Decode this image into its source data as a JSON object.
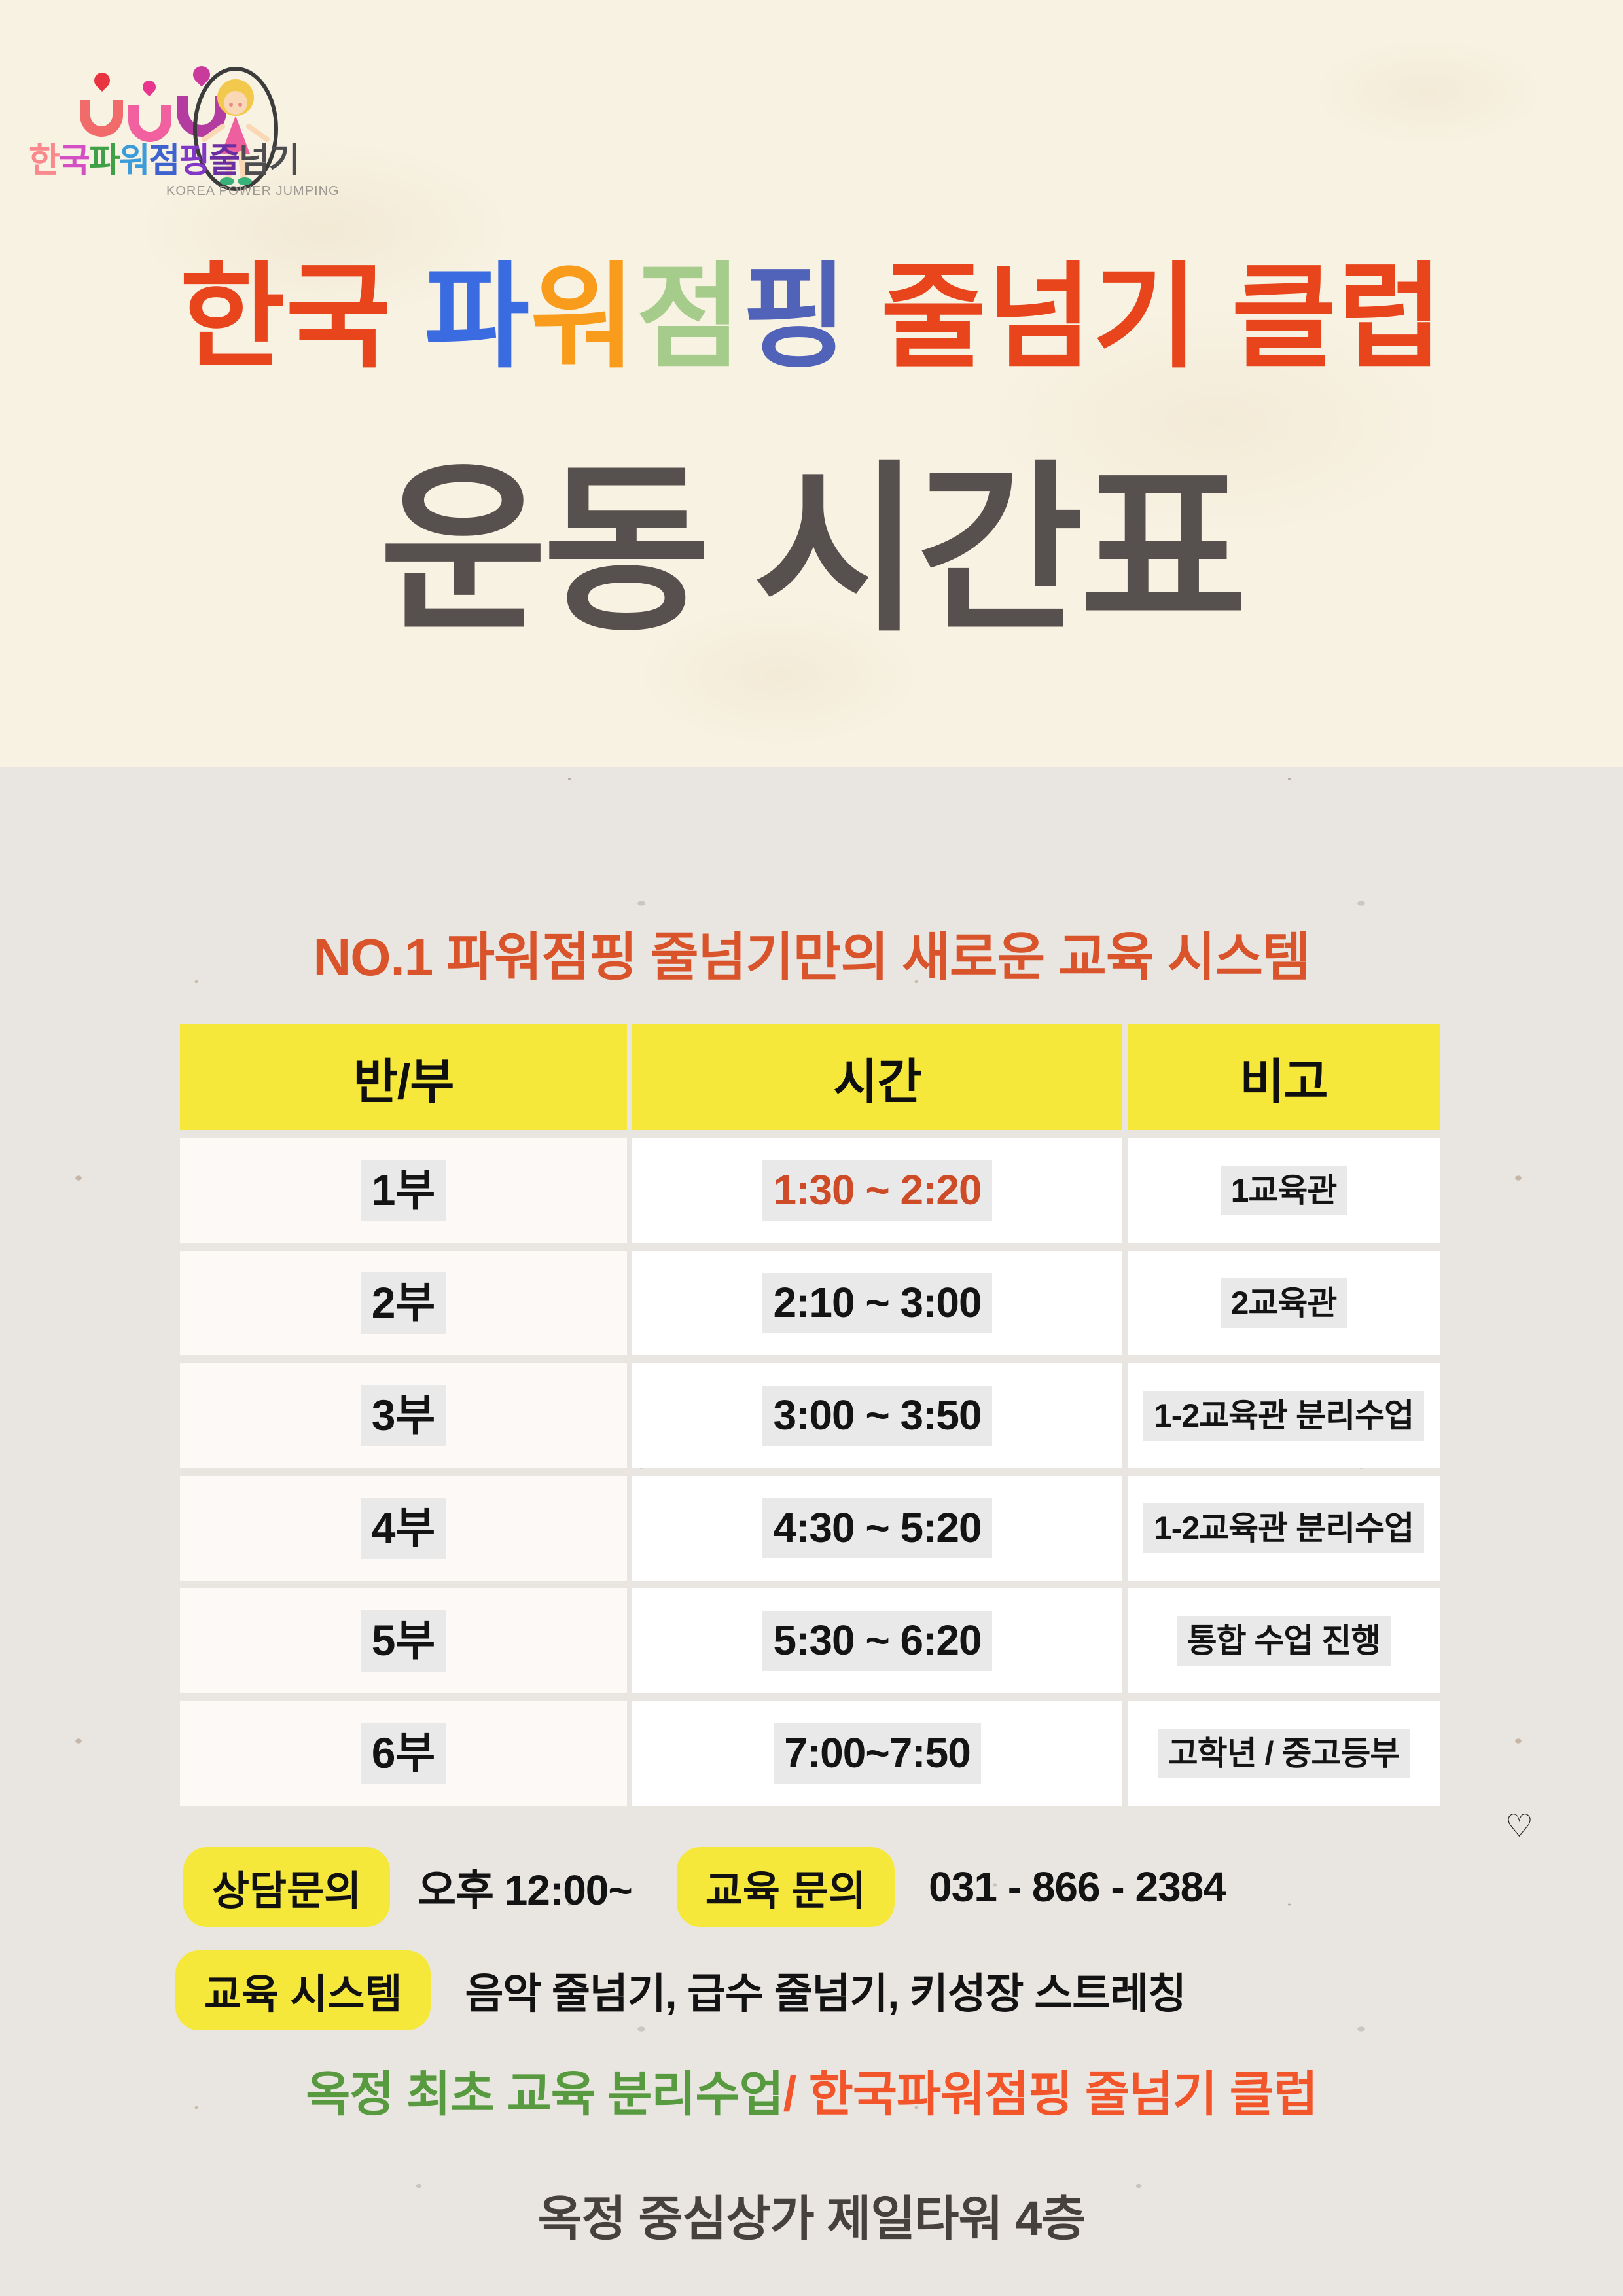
{
  "logo": {
    "chars": [
      {
        "c": "한",
        "color": "#F9898C"
      },
      {
        "c": "국",
        "color": "#D44FC4"
      },
      {
        "c": "파",
        "color": "#3FA047"
      },
      {
        "c": "워",
        "color": "#3C9BD9"
      },
      {
        "c": "점",
        "color": "#3F63CE"
      },
      {
        "c": "핑",
        "color": "#8237C6"
      },
      {
        "c": "줄",
        "color": "#6B2EA0"
      },
      {
        "c": "넘",
        "color": "#4D4C4E"
      },
      {
        "c": "기",
        "color": "#4D4C4E"
      }
    ],
    "subtitle": "KOREA POWER JUMPING"
  },
  "title": {
    "chars": [
      {
        "c": "한",
        "color": "#E8451C"
      },
      {
        "c": "국",
        "color": "#E8451C"
      },
      {
        "c": " ",
        "color": ""
      },
      {
        "c": "파",
        "color": "#3A6BE0"
      },
      {
        "c": "워",
        "color": "#F99C1C"
      },
      {
        "c": "점",
        "color": "#A5CC8B"
      },
      {
        "c": "핑",
        "color": "#5163B8"
      },
      {
        "c": " ",
        "color": ""
      },
      {
        "c": "줄",
        "color": "#E8451C"
      },
      {
        "c": "넘",
        "color": "#E8451C"
      },
      {
        "c": "기",
        "color": "#E8451C"
      },
      {
        "c": " ",
        "color": ""
      },
      {
        "c": "클",
        "color": "#E8451C"
      },
      {
        "c": "럽",
        "color": "#E8451C"
      }
    ]
  },
  "subtitle": "운동 시간표",
  "section_heading": "NO.1 파워점핑 줄넘기만의 새로운 교육 시스템",
  "table": {
    "headers": [
      "반/부",
      "시간",
      "비고"
    ],
    "rows": [
      {
        "part": "1부",
        "time": "1:30 ~ 2:20",
        "note": "1교육관",
        "time_accent": true
      },
      {
        "part": "2부",
        "time": "2:10 ~ 3:00",
        "note": "2교육관",
        "time_accent": false
      },
      {
        "part": "3부",
        "time": "3:00 ~ 3:50",
        "note": "1-2교육관 분리수업",
        "time_accent": false
      },
      {
        "part": "4부",
        "time": "4:30 ~ 5:20",
        "note": "1-2교육관 분리수업",
        "time_accent": false
      },
      {
        "part": "5부",
        "time": "5:30 ~ 6:20",
        "note": "통합 수업 진행",
        "time_accent": false
      },
      {
        "part": "6부",
        "time": "7:00~7:50",
        "note": "고학년 / 중고등부",
        "time_accent": false
      }
    ]
  },
  "contact": {
    "label1": "상담문의",
    "value1": "오후 12:00~",
    "label2": "교육 문의",
    "value2": "031 - 866 - 2384",
    "label3": "교육 시스템",
    "value3": "음악 줄넘기, 급수 줄넘기, 키성장 스트레칭"
  },
  "footer": {
    "green": "옥정 최초 교육 분리수업",
    "orange": "/ 한국파워점핑 줄넘기 클럽",
    "address": "옥정 중심상가 제일타워 4층"
  },
  "icons": {
    "heart": "♡"
  },
  "colors": {
    "top_background": "#F8F2E3",
    "bottom_background": "#E9E6E1",
    "table_header_yellow": "#F5E83A",
    "badge_yellow": "#F5E83A",
    "title_red": "#E8451C",
    "heading_orange": "#D9542B",
    "time_accent": "#CE4B27",
    "slogan_green": "#579A3F",
    "slogan_orange": "#F2552A",
    "cell_highlight": "#E9E9E9"
  }
}
